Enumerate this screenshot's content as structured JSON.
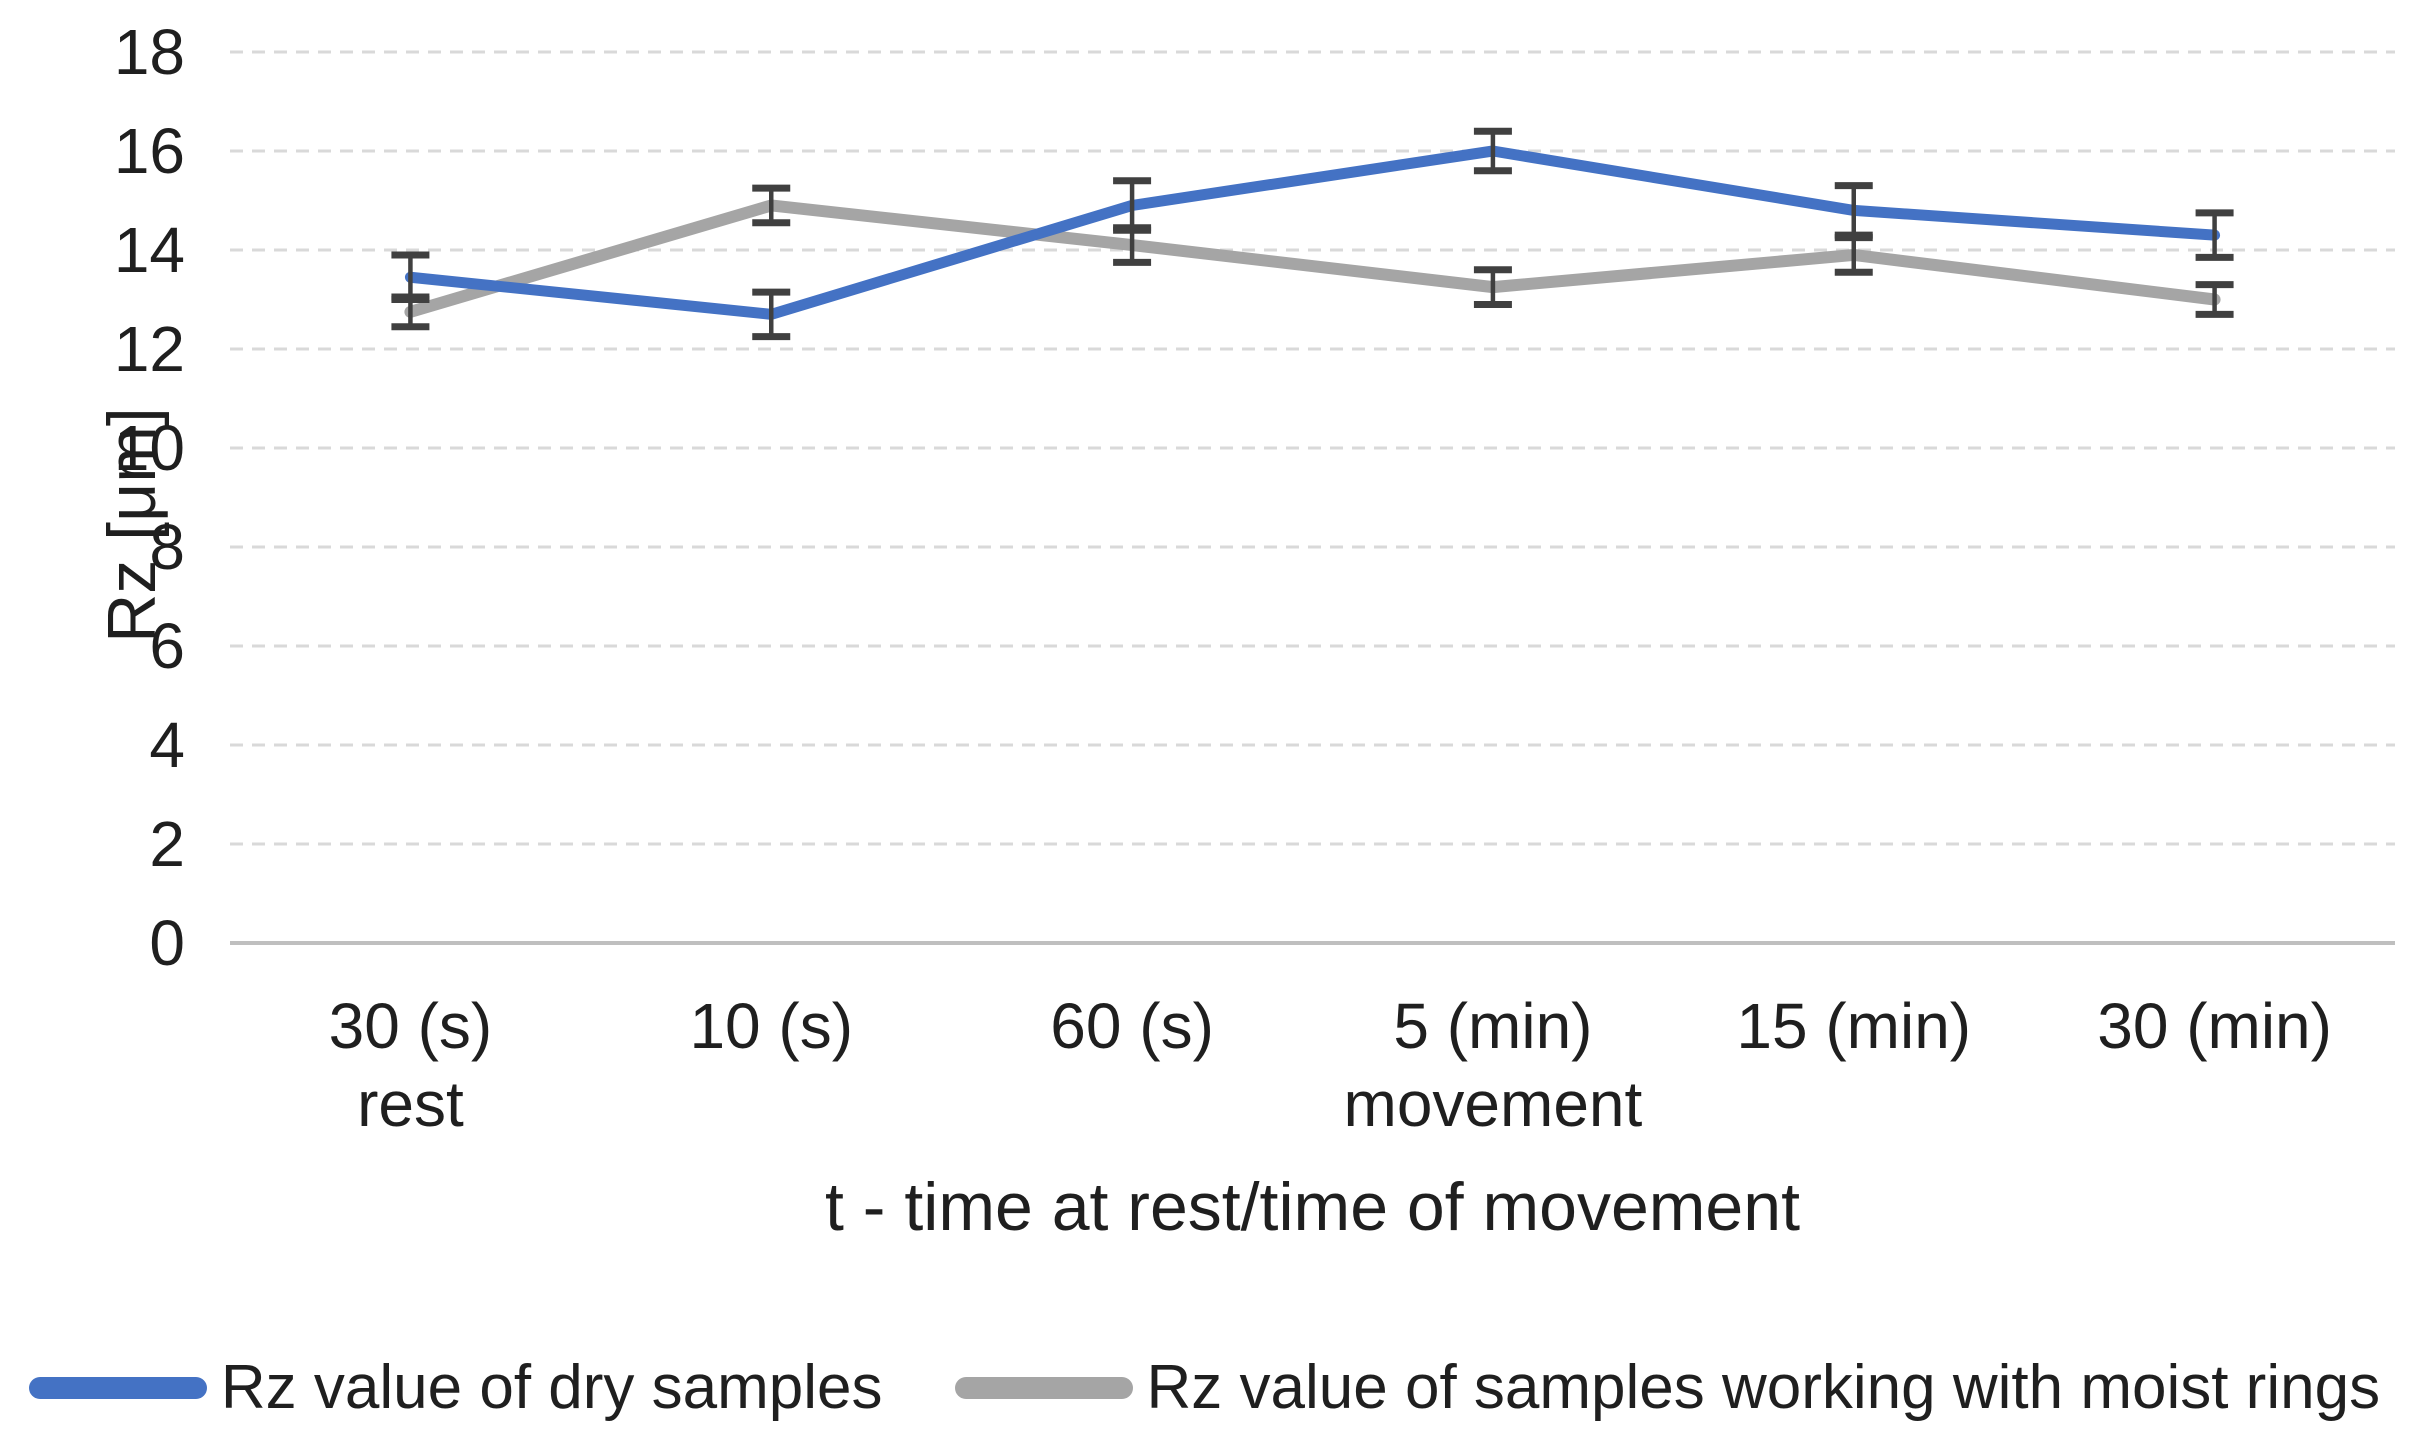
{
  "chart_data": {
    "type": "line",
    "title": "",
    "categories": [
      "30 (s)",
      "10 (s)",
      "60 (s)",
      "5 (min)",
      "15 (min)",
      "30 (min)"
    ],
    "category_sublabels": [
      {
        "index": 0,
        "text": "rest"
      },
      {
        "index": 3,
        "text": "movement"
      }
    ],
    "xlabel": "t - time at rest/time of movement",
    "ylabel": "Rz [μm]",
    "ylim": [
      0,
      18
    ],
    "ytick_step": 2,
    "yticks": [
      0,
      2,
      4,
      6,
      8,
      10,
      12,
      14,
      16,
      18
    ],
    "grid": "horizontal-dashed",
    "legend_position": "bottom",
    "series": [
      {
        "name": "Rz value of dry samples",
        "color": "#4472C4",
        "values": [
          13.45,
          12.7,
          14.9,
          16.0,
          14.8,
          14.3
        ],
        "error": [
          0.45,
          0.45,
          0.5,
          0.4,
          0.5,
          0.45
        ]
      },
      {
        "name": "Rz value of samples working with moist rings",
        "color": "#A5A5A5",
        "values": [
          12.75,
          14.9,
          14.1,
          13.25,
          13.9,
          13.0
        ],
        "error": [
          0.3,
          0.35,
          0.35,
          0.35,
          0.35,
          0.3
        ]
      }
    ],
    "error_bar_color": "#404040",
    "gridline_color": "#D9D9D9",
    "axis_line_color": "#BFBFBF",
    "text_color": "#1f1f1f"
  }
}
